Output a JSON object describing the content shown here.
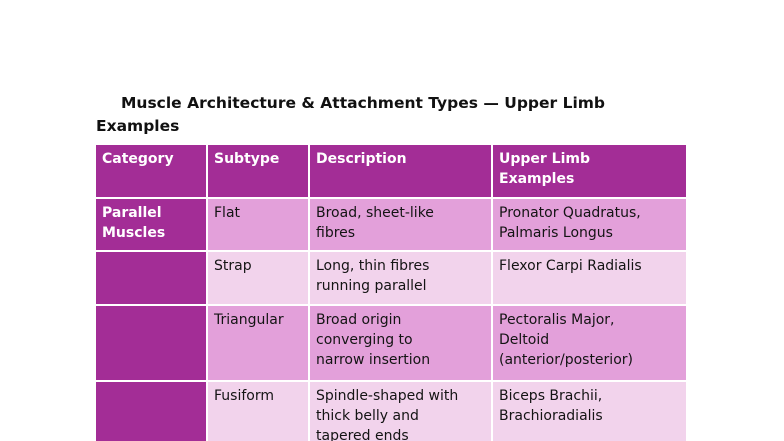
{
  "document": {
    "title": "Muscle Architecture & Attachment Types — Upper Limb\nExamples"
  },
  "table": {
    "headers": [
      "Category",
      "Subtype",
      "Description",
      "Upper Limb\nExamples"
    ],
    "rows": [
      {
        "category": "Parallel\nMuscles",
        "subtype": "Flat",
        "description": "Broad, sheet-like\nfibres",
        "examples": "Pronator Quadratus,\nPalmaris Longus"
      },
      {
        "category": "",
        "subtype": "Strap",
        "description": "Long, thin fibres\nrunning parallel",
        "examples": "Flexor Carpi Radialis"
      },
      {
        "category": "",
        "subtype": "Triangular",
        "description": "Broad origin\nconverging to\nnarrow insertion",
        "examples": "Pectoralis Major,\nDeltoid\n(anterior/posterior)"
      },
      {
        "category": "",
        "subtype": "Fusiform",
        "description": "Spindle-shaped with\nthick belly and\ntapered ends",
        "examples": "Biceps Brachii,\nBrachioradialis"
      }
    ],
    "colors": {
      "header_bg": "#A32D96",
      "category_bg": "#A32D96",
      "row_band_dark": "#E3A0DA",
      "row_band_light": "#F2D3EC",
      "grid": "#FFFFFF",
      "header_text": "#FFFFFF",
      "body_text": "#141414"
    }
  }
}
